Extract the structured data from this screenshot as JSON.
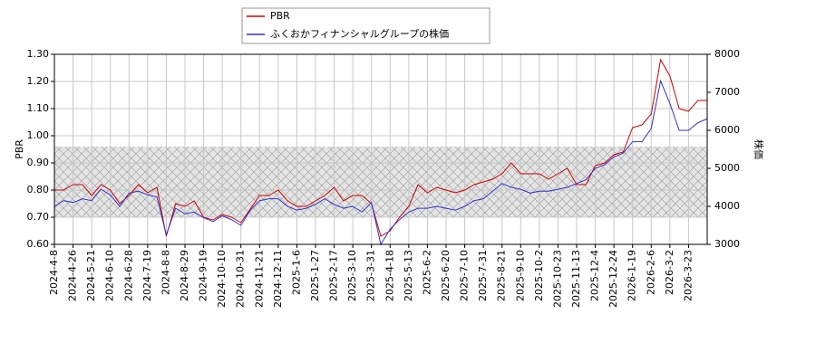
{
  "chart_data": {
    "type": "line",
    "legend_labels": [
      "PBR",
      "ふくおかフィナンシャルグループの株価"
    ],
    "ylabel": "PBR",
    "y2label": "株価",
    "categories": [
      "2024-4-8",
      null,
      "2024-4-26",
      null,
      "2024-5-21",
      null,
      "2024-6-10",
      null,
      "2024-6-28",
      null,
      "2024-7-19",
      null,
      "2024-8-8",
      null,
      "2024-8-29",
      null,
      "2024-9-19",
      null,
      "2024-10-10",
      null,
      "2024-10-31",
      null,
      "2024-11-21",
      null,
      "2024-12-11",
      null,
      "2025-1-6",
      null,
      "2025-1-27",
      null,
      "2025-2-17",
      null,
      "2025-3-10",
      null,
      "2025-3-31",
      null,
      "2025-4-18",
      null,
      "2025-5-13",
      null,
      "2025-6-2",
      null,
      "2025-6-20",
      null,
      "2025-7-10",
      null,
      "2025-7-31",
      null,
      "2025-8-21",
      null,
      "2025-9-10",
      null,
      "2025-10-2",
      null,
      "2025-10-23",
      null,
      "2025-11-13",
      null,
      "2025-12-4",
      null,
      "2025-12-24",
      null,
      "2026-1-19",
      null,
      "2026-2-6",
      null,
      "2026-3-2",
      null,
      "2026-3-23",
      null,
      null
    ],
    "series": [
      {
        "name": "PBR",
        "color": "#cc0000",
        "axis": "y",
        "values": [
          0.8,
          0.8,
          0.82,
          0.82,
          0.78,
          0.82,
          0.8,
          0.75,
          0.78,
          0.82,
          0.79,
          0.81,
          0.63,
          0.75,
          0.74,
          0.76,
          0.7,
          0.69,
          0.71,
          0.7,
          0.68,
          0.73,
          0.78,
          0.78,
          0.8,
          0.76,
          0.74,
          0.74,
          0.76,
          0.78,
          0.81,
          0.76,
          0.78,
          0.78,
          0.75,
          0.63,
          0.65,
          0.7,
          0.74,
          0.82,
          0.79,
          0.81,
          0.8,
          0.79,
          0.8,
          0.82,
          0.83,
          0.84,
          0.86,
          0.9,
          0.86,
          0.86,
          0.86,
          0.84,
          0.86,
          0.88,
          0.82,
          0.82,
          0.89,
          0.9,
          0.93,
          0.94,
          1.03,
          1.04,
          1.08,
          1.28,
          1.22,
          1.1,
          1.09,
          1.13,
          1.13
        ]
      },
      {
        "name": "ふくおかフィナンシャルグループの株価",
        "color": "#3333cc",
        "axis": "y2",
        "values": [
          4000,
          4150,
          4100,
          4200,
          4150,
          4450,
          4300,
          4000,
          4350,
          4400,
          4300,
          4250,
          3250,
          3950,
          3800,
          3850,
          3700,
          3600,
          3750,
          3650,
          3500,
          3900,
          4150,
          4200,
          4200,
          4000,
          3900,
          3950,
          4050,
          4200,
          4050,
          3950,
          4000,
          3850,
          4100,
          3000,
          3400,
          3650,
          3850,
          3950,
          3950,
          4000,
          3950,
          3900,
          4000,
          4150,
          4200,
          4400,
          4600,
          4500,
          4450,
          4350,
          4400,
          4400,
          4450,
          4500,
          4600,
          4700,
          5000,
          5100,
          5300,
          5400,
          5700,
          5700,
          6050,
          7300,
          6700,
          6000,
          6000,
          6200,
          6300
        ]
      }
    ],
    "ylim": [
      0.6,
      1.3
    ],
    "yticks": [
      {
        "value": 0.6,
        "label": "0.60"
      },
      {
        "value": 0.7,
        "label": "0.70"
      },
      {
        "value": 0.8,
        "label": "0.80"
      },
      {
        "value": 0.9,
        "label": "0.90"
      },
      {
        "value": 1.0,
        "label": "1.00"
      },
      {
        "value": 1.1,
        "label": "1.10"
      },
      {
        "value": 1.2,
        "label": "1.20"
      },
      {
        "value": 1.3,
        "label": "1.30"
      }
    ],
    "y2lim": [
      3000,
      8000
    ],
    "y2ticks": [
      3000,
      4000,
      5000,
      6000,
      7000,
      8000
    ],
    "shaded_band": [
      0.7,
      0.96
    ],
    "grid": true
  }
}
